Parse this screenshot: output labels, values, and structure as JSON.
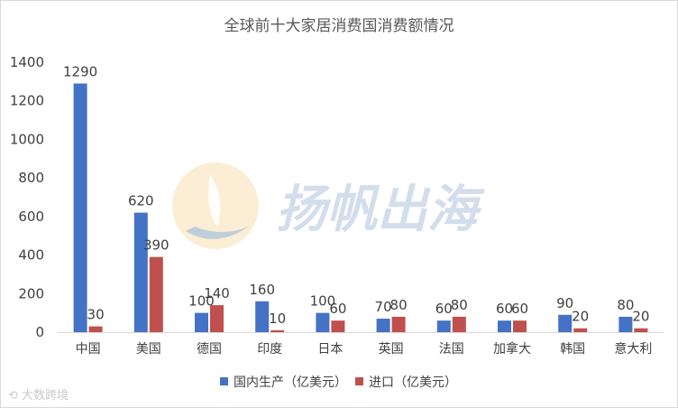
{
  "chart_data": {
    "type": "bar",
    "title": "全球前十大家居消费国消费额情况",
    "categories": [
      "中国",
      "美国",
      "德国",
      "印度",
      "日本",
      "英国",
      "法国",
      "加拿大",
      "韩国",
      "意大利"
    ],
    "series": [
      {
        "name": "国内生产（亿美元）",
        "color": "#4472c4",
        "values": [
          1290,
          620,
          100,
          160,
          100,
          70,
          60,
          60,
          90,
          80
        ]
      },
      {
        "name": "进口（亿美元）",
        "color": "#c0504d",
        "values": [
          30,
          390,
          140,
          10,
          60,
          80,
          80,
          60,
          20,
          20
        ]
      }
    ],
    "yticks": [
      0,
      200,
      400,
      600,
      800,
      1000,
      1200,
      1400
    ],
    "ylim": [
      0,
      1400
    ],
    "grid": false,
    "legend_position": "bottom"
  },
  "watermark": {
    "text": "扬帆出海",
    "icon": "sail-logo-icon"
  },
  "corner_watermark": {
    "text": "大数跨境",
    "icon": "dsk-logo-icon"
  }
}
